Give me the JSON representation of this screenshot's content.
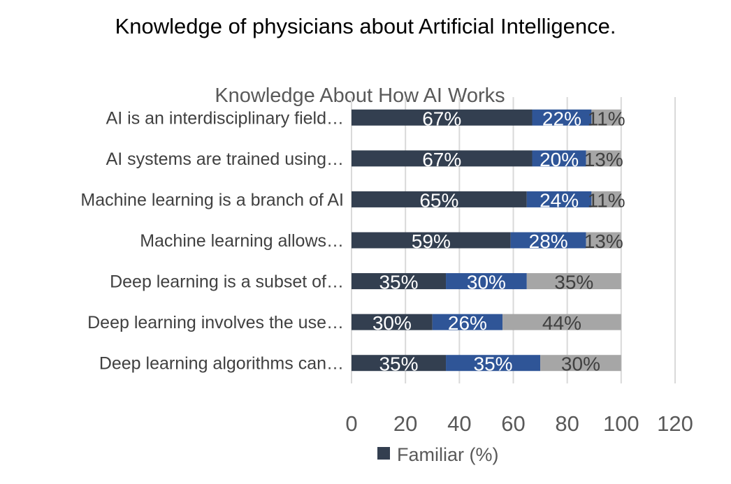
{
  "page_title": "Knowledge of physicians about Artificial Intelligence.",
  "chart_data": {
    "type": "bar",
    "orientation": "horizontal",
    "stacked": true,
    "title": "Knowledge About How AI Works",
    "categories": [
      "AI is an interdisciplinary field…",
      "AI systems are trained using…",
      "Machine learning is a branch of AI",
      "Machine learning allows…",
      "Deep learning is a subset of…",
      "Deep learning involves the use…",
      "Deep learning algorithms can…"
    ],
    "series": [
      {
        "name": "Familiar (%)",
        "color": "#333f50",
        "values": [
          67,
          67,
          65,
          59,
          35,
          30,
          35
        ],
        "labels": [
          "67%",
          "67%",
          "65%",
          "59%",
          "35%",
          "30%",
          "35%"
        ],
        "label_color": "#ffffff"
      },
      {
        "color": "#2f5597",
        "values": [
          22,
          20,
          24,
          28,
          30,
          26,
          35
        ],
        "labels": [
          "22%",
          "20%",
          "24%",
          "28%",
          "30%",
          "26%",
          "35%"
        ],
        "label_color": "#ffffff"
      },
      {
        "color": "#a6a6a6",
        "values": [
          11,
          13,
          11,
          13,
          35,
          44,
          30
        ],
        "labels": [
          "11%",
          "13%",
          "11%",
          "13%",
          "35%",
          "44%",
          "30%"
        ],
        "label_color": "#404040"
      }
    ],
    "x_ticks": [
      "0",
      "20",
      "40",
      "60",
      "80",
      "100",
      "120"
    ],
    "xlim": [
      0,
      120
    ],
    "grid": "vertical",
    "legend": {
      "position": "bottom",
      "entries": [
        "Familiar (%)"
      ]
    }
  }
}
